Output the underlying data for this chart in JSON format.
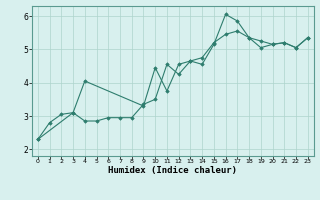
{
  "title": "",
  "xlabel": "Humidex (Indice chaleur)",
  "bg_color": "#d8f0ee",
  "line_color": "#2e7d6e",
  "grid_color": "#aed4cc",
  "xlim": [
    -0.5,
    23.5
  ],
  "ylim": [
    1.8,
    6.3
  ],
  "xticks": [
    0,
    1,
    2,
    3,
    4,
    5,
    6,
    7,
    8,
    9,
    10,
    11,
    12,
    13,
    14,
    15,
    16,
    17,
    18,
    19,
    20,
    21,
    22,
    23
  ],
  "yticks": [
    2,
    3,
    4,
    5,
    6
  ],
  "line1_x": [
    0,
    1,
    2,
    3,
    4,
    5,
    6,
    7,
    8,
    9,
    10,
    11,
    12,
    13,
    14,
    15,
    16,
    17,
    18,
    19,
    20,
    21,
    22,
    23
  ],
  "line1_y": [
    2.3,
    2.8,
    3.05,
    3.1,
    2.85,
    2.85,
    2.95,
    2.95,
    2.95,
    3.35,
    3.5,
    4.55,
    4.25,
    4.65,
    4.55,
    5.15,
    6.05,
    5.85,
    5.35,
    5.05,
    5.15,
    5.2,
    5.05,
    5.35
  ],
  "line2_x": [
    0,
    3,
    4,
    9,
    10,
    11,
    12,
    13,
    14,
    15,
    16,
    17,
    18,
    19,
    20,
    21,
    22,
    23
  ],
  "line2_y": [
    2.3,
    3.1,
    4.05,
    3.3,
    4.45,
    3.75,
    4.55,
    4.65,
    4.75,
    5.2,
    5.45,
    5.55,
    5.35,
    5.25,
    5.15,
    5.2,
    5.05,
    5.35
  ]
}
